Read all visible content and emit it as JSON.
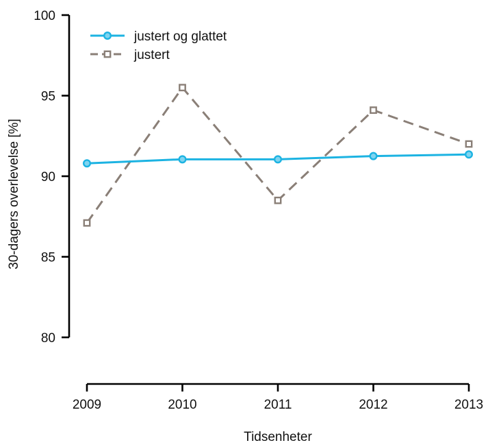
{
  "chart_data": {
    "type": "line",
    "x": [
      "2009",
      "2010",
      "2011",
      "2012",
      "2013"
    ],
    "xlabel": "Tidsenheter",
    "ylabel": "30-dagers overlevelse [%]",
    "ylim": [
      80,
      100
    ],
    "yticks": [
      80,
      85,
      90,
      95,
      100
    ],
    "grid": false,
    "legend_position": "top-left",
    "series": [
      {
        "name": "justert og glattet",
        "values": [
          90.8,
          91.05,
          91.05,
          91.25,
          91.35
        ],
        "color": "#1cb3e2",
        "line_style": "solid",
        "marker": "circle"
      },
      {
        "name": "justert",
        "values": [
          87.1,
          95.5,
          88.5,
          94.1,
          92.0
        ],
        "color": "#8a7f77",
        "line_style": "dashed",
        "marker": "square"
      }
    ]
  }
}
